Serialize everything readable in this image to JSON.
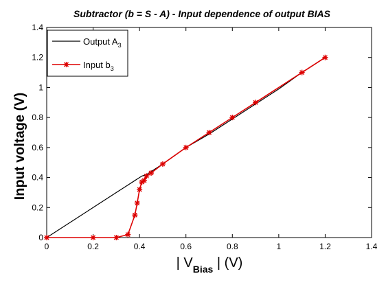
{
  "chart_data": {
    "type": "line",
    "title": "Subtractor (b = S - A) - Input dependence of output BIAS",
    "xlabel": {
      "pre": "| V",
      "sub": "Bias",
      "post": " | (V)"
    },
    "ylabel": "Input voltage (V)",
    "xlim": [
      0,
      1.4
    ],
    "ylim": [
      0,
      1.4
    ],
    "xticks": [
      0,
      0.2,
      0.4,
      0.6,
      0.8,
      1,
      1.2,
      1.4
    ],
    "yticks": [
      0,
      0.2,
      0.4,
      0.6,
      0.8,
      1,
      1.2,
      1.4
    ],
    "xtick_labels": [
      "0",
      "0.2",
      "0.4",
      "0.6",
      "0.8",
      "1",
      "1.2",
      "1.4"
    ],
    "ytick_labels": [
      "0",
      "0.2",
      "0.4",
      "0.6",
      "0.8",
      "1",
      "1.2",
      "1.4"
    ],
    "grid": false,
    "legend_position": "top-left",
    "series": [
      {
        "name": "Output A",
        "name_sub": "3",
        "color": "#000000",
        "marker": "none",
        "x": [
          0,
          0.2,
          0.3,
          0.35,
          0.38,
          0.39,
          0.4,
          0.41,
          0.42,
          0.43,
          0.45,
          0.5,
          0.6,
          0.7,
          0.8,
          0.9,
          1.0,
          1.1,
          1.2
        ],
        "y": [
          0,
          0.2,
          0.3,
          0.35,
          0.38,
          0.39,
          0.4,
          0.41,
          0.415,
          0.42,
          0.44,
          0.49,
          0.6,
          0.69,
          0.79,
          0.89,
          0.99,
          1.1,
          1.2
        ]
      },
      {
        "name": "Input b",
        "name_sub": "3",
        "color": "#dd0000",
        "marker": "asterisk",
        "x": [
          0,
          0.2,
          0.3,
          0.35,
          0.38,
          0.39,
          0.4,
          0.41,
          0.42,
          0.43,
          0.45,
          0.5,
          0.6,
          0.7,
          0.8,
          0.9,
          1.1,
          1.2
        ],
        "y": [
          0,
          0,
          0,
          0.02,
          0.15,
          0.23,
          0.32,
          0.37,
          0.38,
          0.41,
          0.43,
          0.49,
          0.6,
          0.7,
          0.8,
          0.9,
          1.1,
          1.2
        ]
      }
    ]
  }
}
